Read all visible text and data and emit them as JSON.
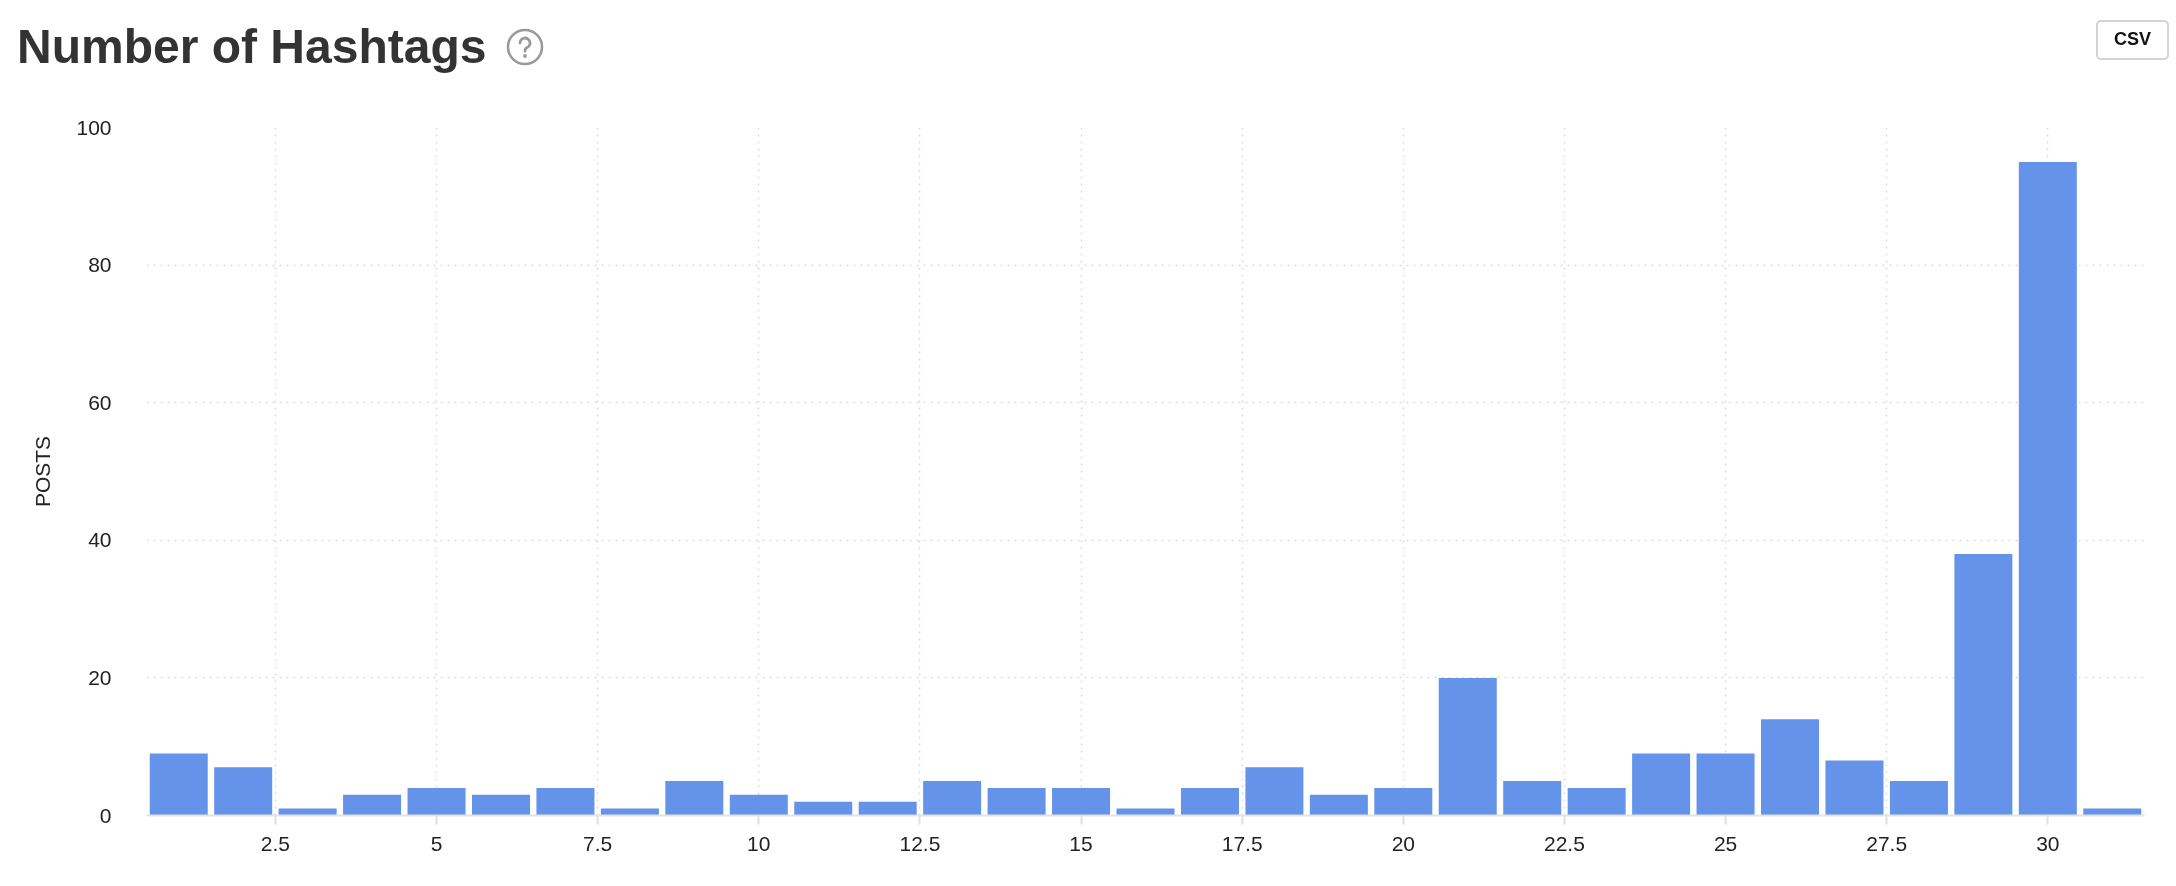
{
  "chart_data": {
    "type": "bar",
    "title": "Number of Hashtags",
    "ylabel": "POSTS",
    "x": [
      1,
      2,
      3,
      4,
      5,
      6,
      7,
      8,
      9,
      10,
      11,
      12,
      13,
      14,
      15,
      16,
      17,
      18,
      19,
      20,
      21,
      22,
      23,
      24,
      25,
      26,
      27,
      28,
      29,
      30,
      31
    ],
    "values": [
      9,
      7,
      1,
      3,
      4,
      3,
      4,
      1,
      5,
      3,
      2,
      2,
      5,
      4,
      4,
      1,
      4,
      7,
      3,
      4,
      20,
      5,
      4,
      9,
      9,
      14,
      8,
      5,
      38,
      95,
      1
    ],
    "color": "#6593e9",
    "xlim": [
      0.5,
      31.5
    ],
    "xticks": [
      2.5,
      5,
      7.5,
      10,
      12.5,
      15,
      17.5,
      20,
      22.5,
      25,
      27.5,
      30
    ],
    "ylim": [
      0,
      100
    ],
    "yticks": [
      0,
      20,
      40,
      60,
      80,
      100
    ],
    "grid": true,
    "annotations": [
      "CSV"
    ]
  }
}
